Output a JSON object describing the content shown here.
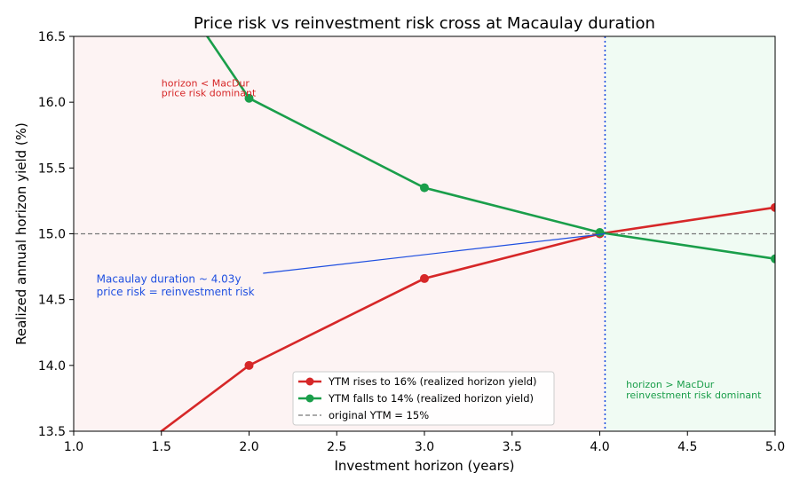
{
  "chart_data": {
    "type": "line",
    "title": "Price risk vs reinvestment risk cross at Macaulay duration",
    "xlabel": "Investment horizon (years)",
    "ylabel": "Realized annual horizon yield (%)",
    "xlim": [
      1.0,
      5.0
    ],
    "ylim": [
      13.5,
      16.5
    ],
    "xticks": [
      "1.0",
      "1.5",
      "2.0",
      "2.5",
      "3.0",
      "3.5",
      "4.0",
      "4.5",
      "5.0"
    ],
    "yticks": [
      "13.5",
      "14.0",
      "14.5",
      "15.0",
      "15.5",
      "16.0",
      "16.5"
    ],
    "grid": false,
    "legend_position": "lower-center",
    "series": [
      {
        "name": "YTM rises to 16% (realized horizon yield)",
        "color": "#d62728",
        "x": [
          1,
          2,
          3,
          4,
          5
        ],
        "y": [
          13.0,
          14.0,
          14.66,
          15.0,
          15.2
        ]
      },
      {
        "name": "YTM falls to 14% (realized horizon yield)",
        "color": "#1a9e4a",
        "x": [
          1,
          2,
          3,
          4,
          5
        ],
        "y": [
          18.0,
          16.03,
          15.35,
          15.01,
          14.81
        ]
      }
    ],
    "reference_line": {
      "name": "original YTM = 15%",
      "y": 15.0,
      "color": "#777777"
    },
    "macaulay_duration": {
      "x": 4.03,
      "color": "#1f4fe0"
    },
    "regions": [
      {
        "from": 1.0,
        "to": 4.03,
        "color": "#fdf3f3"
      },
      {
        "from": 4.03,
        "to": 5.0,
        "color": "#f0fbf3"
      }
    ],
    "annotations": {
      "left_region": {
        "line1": "horizon < MacDur",
        "line2": "price risk dominant",
        "color": "#d62728",
        "x": 1.5,
        "y": 16.12
      },
      "right_region": {
        "line1": "horizon > MacDur",
        "line2": "reinvestment risk dominant",
        "color": "#1a9e4a",
        "x": 4.15,
        "y": 13.83
      },
      "duration_note": {
        "line1": "Macaulay duration ~ 4.03y",
        "line2": "price risk = reinvestment risk",
        "color": "#1f4fe0",
        "x": 1.13,
        "y": 14.63,
        "arrow_from": [
          2.08,
          14.7
        ],
        "arrow_to": [
          4.03,
          15.0
        ]
      }
    }
  }
}
